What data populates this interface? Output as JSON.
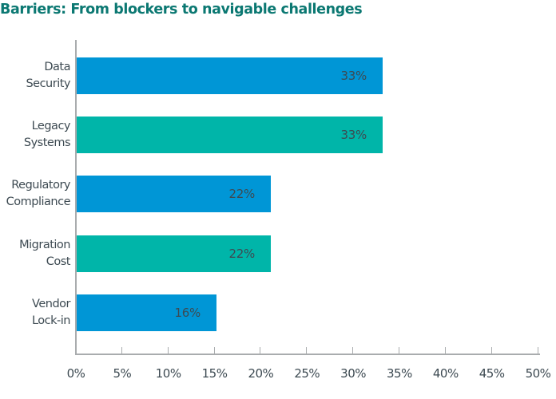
{
  "title": "Barriers: From blockers to navigable challenges",
  "colors": {
    "title": "#0b7872",
    "blue": "#0096d6",
    "teal": "#00b5a9",
    "axis": "#a9acae",
    "text": "#3d4a52"
  },
  "chart_data": {
    "type": "bar",
    "orientation": "horizontal",
    "title": "Barriers: From blockers to navigable challenges",
    "categories": [
      "Data Security",
      "Legacy Systems",
      "Regulatory Compliance",
      "Migration Cost",
      "Vendor Lock-in"
    ],
    "category_lines": [
      [
        "Data",
        "Security"
      ],
      [
        "Legacy",
        "Systems"
      ],
      [
        "Regulatory",
        "Compliance"
      ],
      [
        "Migration",
        "Cost"
      ],
      [
        "Vendor",
        "Lock-in"
      ]
    ],
    "values": [
      33,
      33,
      22,
      22,
      16
    ],
    "value_labels": [
      "33%",
      "33%",
      "22%",
      "22%",
      "16%"
    ],
    "bar_colors": [
      "#0096d6",
      "#00b5a9",
      "#0096d6",
      "#00b5a9",
      "#0096d6"
    ],
    "xlabel": "",
    "ylabel": "",
    "xlim": [
      0,
      50
    ],
    "x_ticks": [
      "0%",
      "5%",
      "10%",
      "15%",
      "20%",
      "25%",
      "30%",
      "35%",
      "40%",
      "45%",
      "50%"
    ],
    "grid": false,
    "legend": null
  }
}
